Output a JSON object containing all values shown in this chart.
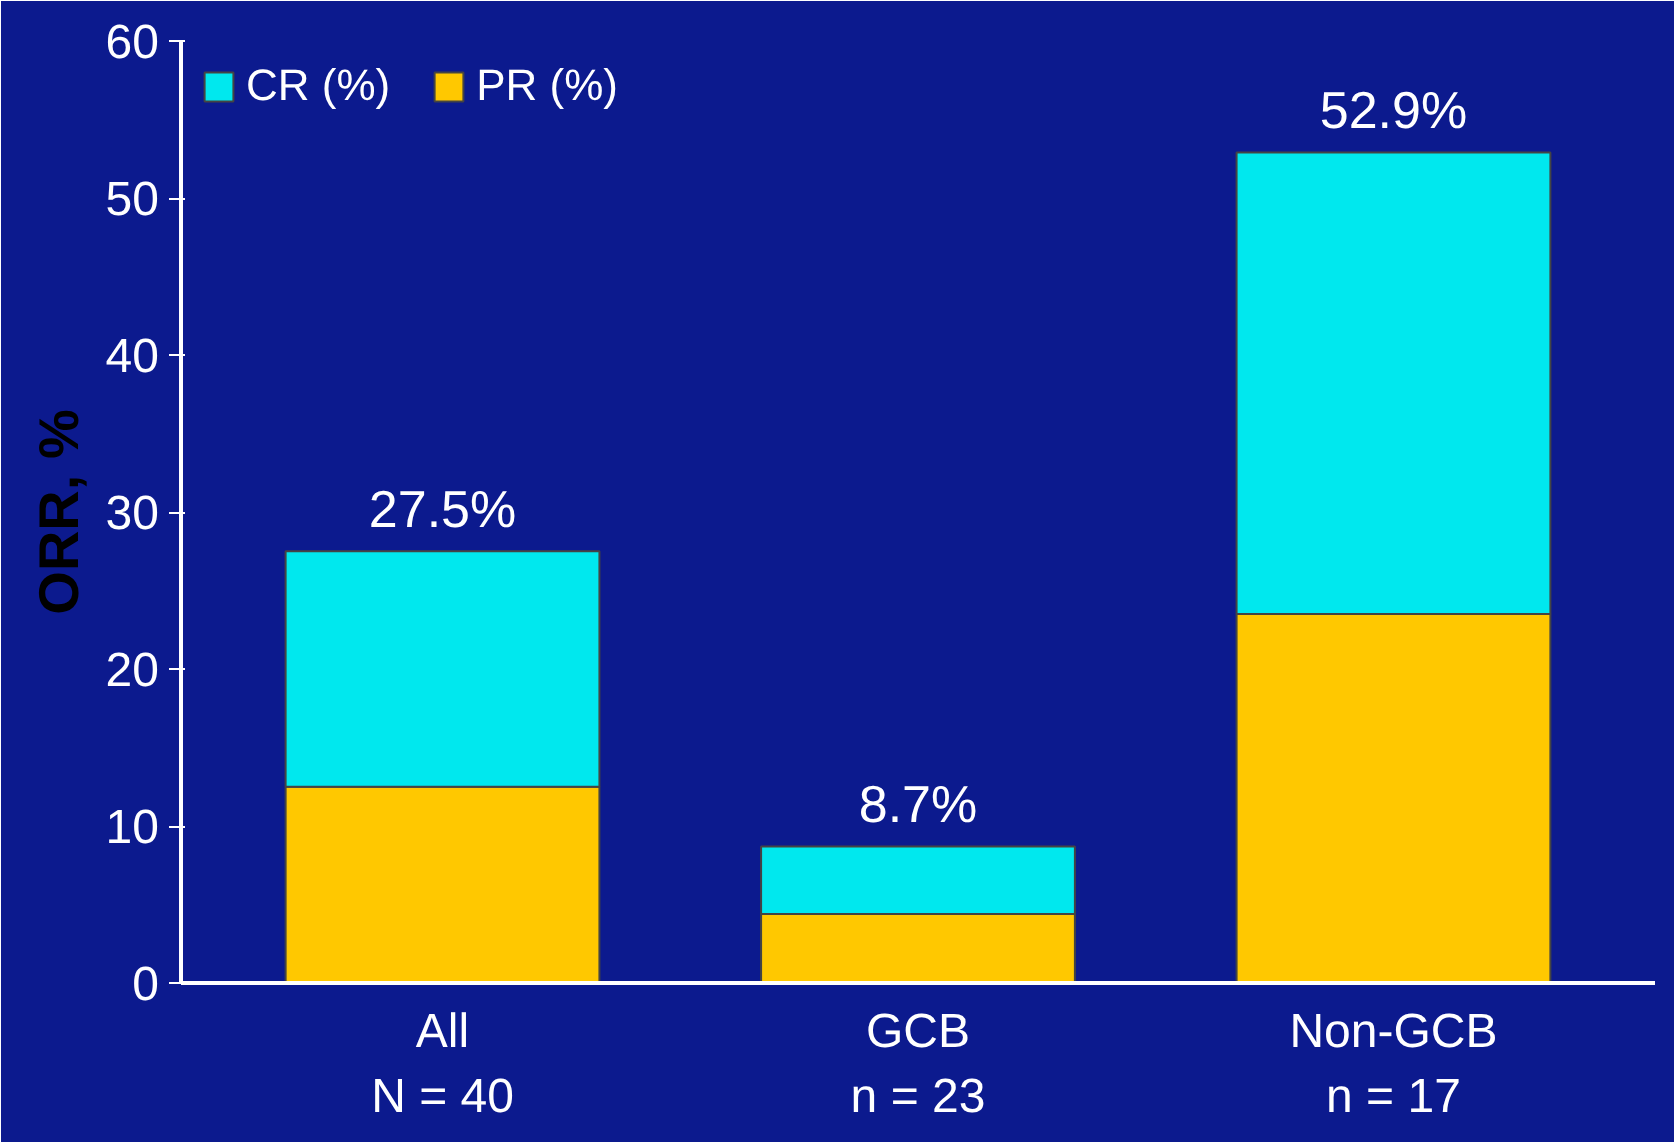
{
  "chart_data": {
    "type": "bar",
    "stacked": true,
    "ylabel": "ORR, %",
    "categories": [
      "All\nN = 40",
      "GCB\nn = 23",
      "Non-GCB\nn = 17"
    ],
    "series": [
      {
        "name": "PR (%)",
        "color": "#ffc800",
        "values": [
          12.5,
          4.4,
          23.5
        ]
      },
      {
        "name": "CR (%)",
        "color": "#00e8ee",
        "values": [
          15.0,
          4.3,
          29.4
        ]
      }
    ],
    "totals": [
      "27.5%",
      "8.7%",
      "52.9%"
    ],
    "ylim": [
      0,
      60
    ],
    "yticks": [
      0,
      10,
      20,
      30,
      40,
      50,
      60
    ],
    "grid": false,
    "legend": "top left"
  }
}
